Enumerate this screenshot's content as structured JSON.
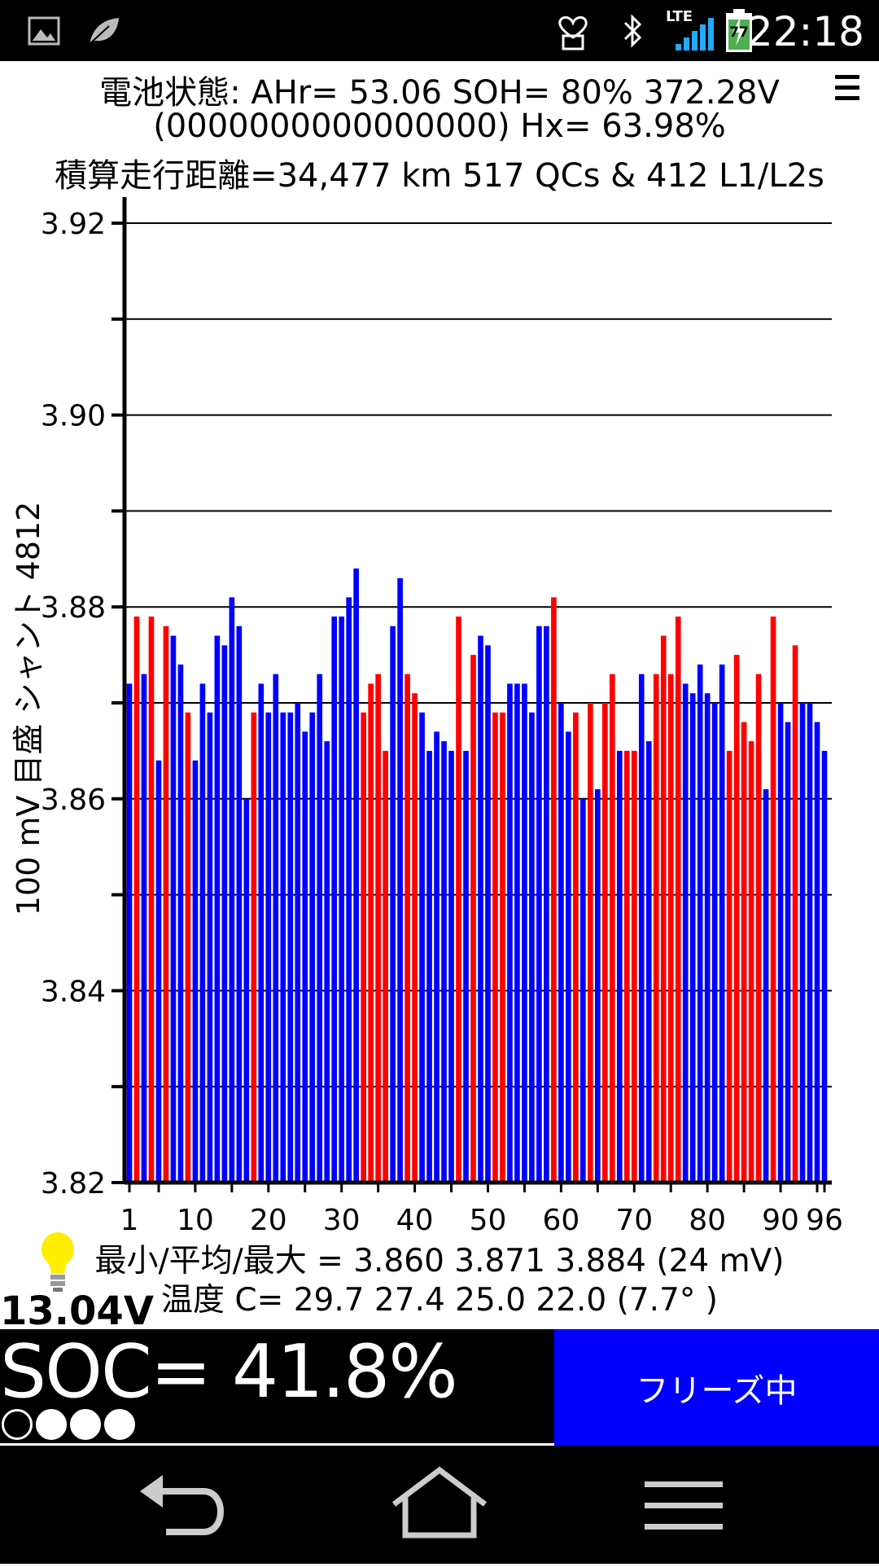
{
  "status_bar": {
    "time": "22:18",
    "network": "LTE",
    "battery_level": "77",
    "icons": [
      "image-icon",
      "leaf-icon",
      "heart-battery-icon",
      "bluetooth-icon",
      "signal-icon",
      "battery-icon"
    ]
  },
  "header": {
    "line1": "電池状態: AHr= 53.06 SOH= 80% 372.28V",
    "line2": "(0000000000000000)   Hx= 63.98%",
    "line3": "積算走行距離=34,477 km  517 QCs  &  412 L1/L2s"
  },
  "chart_data": {
    "type": "bar",
    "ylabel": "100 mV 目盛  シャント 4812",
    "ylim": [
      3.82,
      3.92
    ],
    "yticks": [
      3.82,
      3.83,
      3.84,
      3.85,
      3.86,
      3.87,
      3.88,
      3.89,
      3.9,
      3.91,
      3.92
    ],
    "ytick_labels": [
      "3.82",
      "3.84",
      "3.86",
      "3.88",
      "3.90",
      "3.92"
    ],
    "x_range": [
      1,
      96
    ],
    "xtick_labels": [
      "1",
      "10",
      "20",
      "30",
      "40",
      "50",
      "60",
      "70",
      "80",
      "90",
      "96"
    ],
    "grid": true,
    "colors": {
      "blue": "#0000ff",
      "red": "#ff0000"
    },
    "values": [
      3.872,
      3.879,
      3.873,
      3.879,
      3.864,
      3.878,
      3.877,
      3.874,
      3.869,
      3.864,
      3.872,
      3.869,
      3.877,
      3.876,
      3.881,
      3.878,
      3.86,
      3.869,
      3.872,
      3.869,
      3.873,
      3.869,
      3.869,
      3.87,
      3.867,
      3.869,
      3.873,
      3.866,
      3.879,
      3.879,
      3.881,
      3.884,
      3.869,
      3.872,
      3.873,
      3.865,
      3.878,
      3.883,
      3.873,
      3.871,
      3.869,
      3.865,
      3.867,
      3.866,
      3.865,
      3.879,
      3.865,
      3.875,
      3.877,
      3.876,
      3.869,
      3.869,
      3.872,
      3.872,
      3.872,
      3.869,
      3.878,
      3.878,
      3.881,
      3.87,
      3.867,
      3.869,
      3.86,
      3.87,
      3.861,
      3.87,
      3.873,
      3.865,
      3.865,
      3.865,
      3.873,
      3.866,
      3.873,
      3.877,
      3.873,
      3.879,
      3.872,
      3.871,
      3.874,
      3.871,
      3.87,
      3.874,
      3.865,
      3.875,
      3.868,
      3.866,
      3.873,
      3.861,
      3.879,
      3.87,
      3.868,
      3.876,
      3.87,
      3.87,
      3.868,
      3.865
    ],
    "bar_colors": [
      "blue",
      "red",
      "blue",
      "red",
      "blue",
      "red",
      "blue",
      "blue",
      "red",
      "blue",
      "blue",
      "blue",
      "blue",
      "blue",
      "blue",
      "blue",
      "blue",
      "red",
      "blue",
      "blue",
      "blue",
      "blue",
      "blue",
      "blue",
      "blue",
      "blue",
      "blue",
      "blue",
      "blue",
      "blue",
      "blue",
      "blue",
      "red",
      "red",
      "red",
      "red",
      "blue",
      "blue",
      "red",
      "red",
      "blue",
      "blue",
      "blue",
      "blue",
      "blue",
      "red",
      "blue",
      "red",
      "blue",
      "blue",
      "red",
      "red",
      "blue",
      "blue",
      "blue",
      "blue",
      "blue",
      "blue",
      "red",
      "blue",
      "blue",
      "red",
      "blue",
      "red",
      "blue",
      "red",
      "red",
      "blue",
      "red",
      "red",
      "blue",
      "blue",
      "red",
      "red",
      "red",
      "red",
      "blue",
      "blue",
      "blue",
      "blue",
      "blue",
      "blue",
      "red",
      "red",
      "red",
      "red",
      "red",
      "blue",
      "red",
      "blue",
      "blue",
      "red",
      "blue",
      "blue",
      "blue",
      "blue"
    ]
  },
  "stats": {
    "minmax": "最小/平均/最大 = 3.860 3.871 3.884  (24 mV)",
    "temps": "温度 C= 29.7  27.4  25.0  22.0  (7.7°  )"
  },
  "aux_voltage": "13.04V",
  "soc": "SOC= 41.8%",
  "soc_dots": [
    false,
    true,
    true,
    true
  ],
  "freeze_button": "フリーズ中",
  "nav": [
    "back",
    "home",
    "menu"
  ]
}
